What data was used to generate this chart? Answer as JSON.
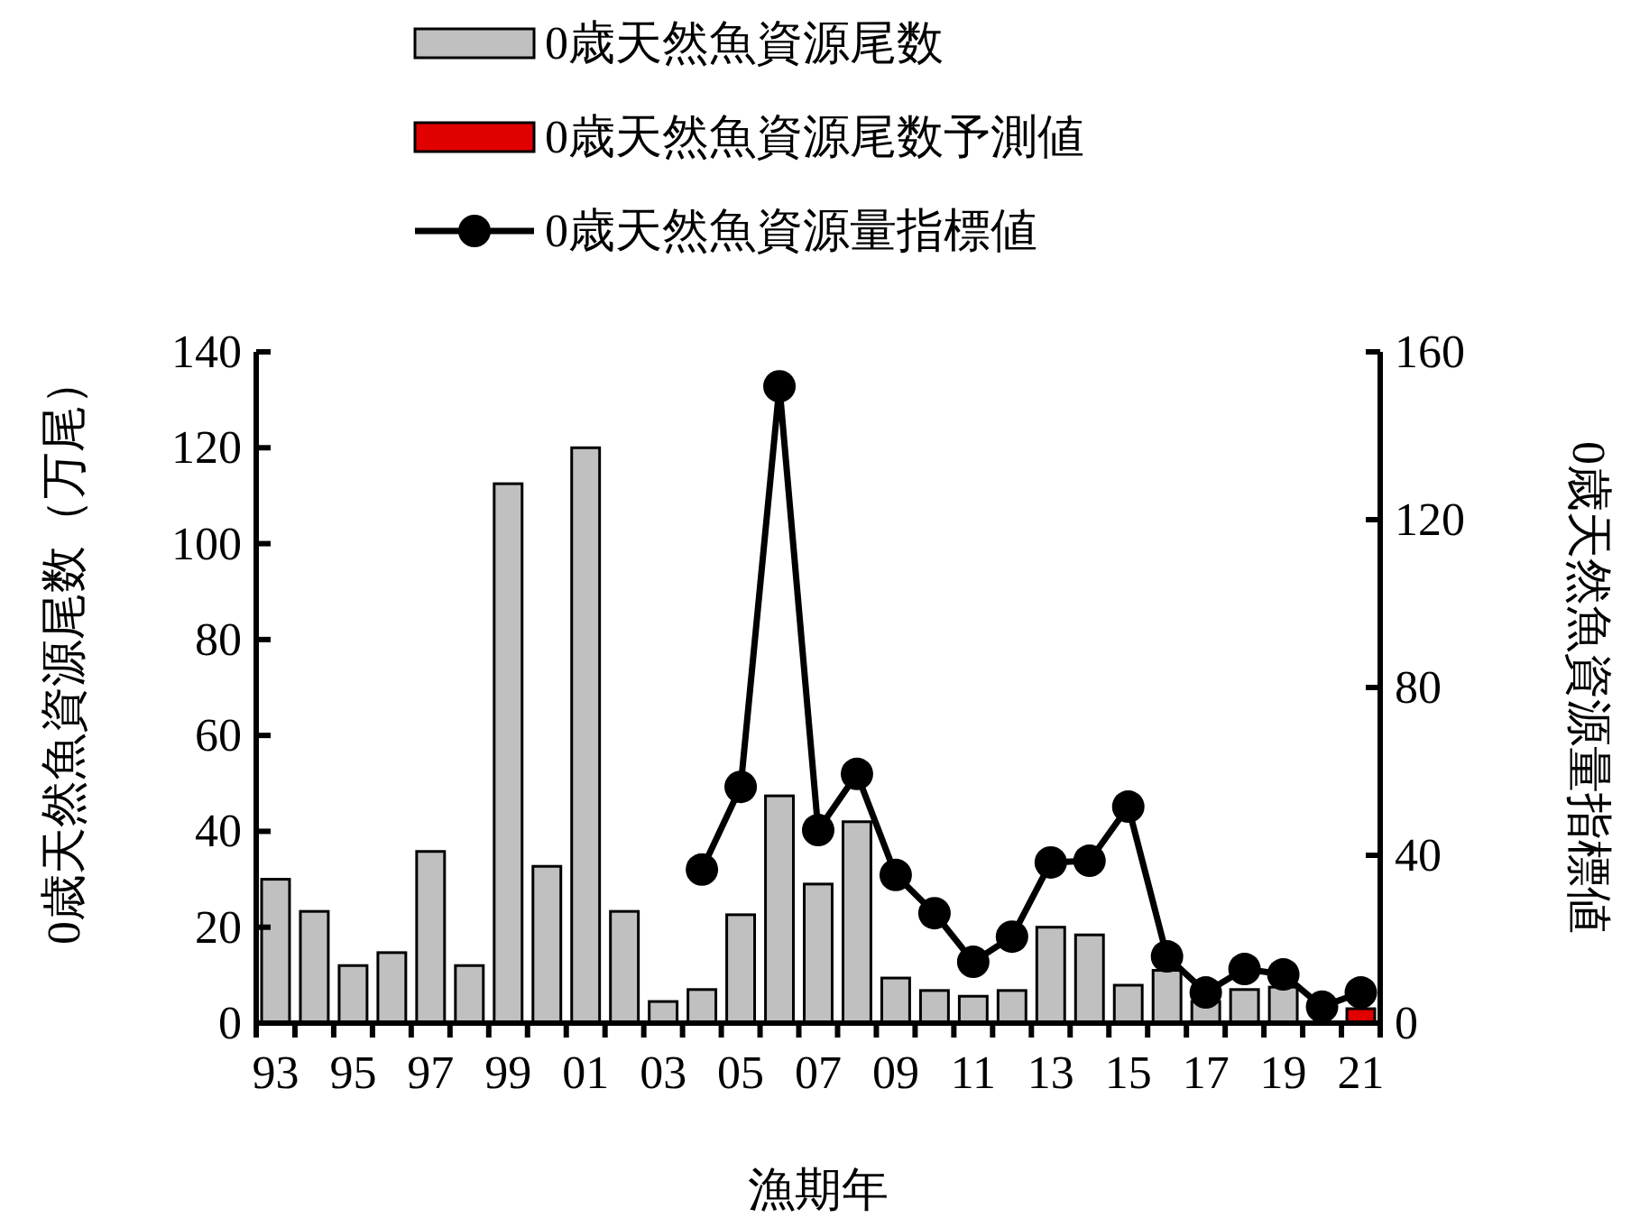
{
  "chart_data": {
    "type": "bar",
    "xlabel": "漁期年",
    "ylabel": "0歳天然魚資源尾数（万尾）",
    "y2label": "0歳天然魚資源量指標値",
    "categories": [
      "93",
      null,
      "95",
      null,
      "97",
      null,
      "99",
      null,
      "01",
      null,
      "03",
      null,
      "05",
      null,
      "07",
      null,
      "09",
      null,
      "11",
      null,
      "13",
      null,
      "15",
      null,
      "17",
      null,
      "19",
      null,
      "21"
    ],
    "ylim": [
      0,
      140
    ],
    "yticks": [
      0,
      20,
      40,
      60,
      80,
      100,
      120,
      140
    ],
    "y2lim": [
      0,
      160
    ],
    "y2ticks": [
      0,
      40,
      80,
      120,
      160
    ],
    "legend": "top",
    "grid": false,
    "marker": "circle",
    "series": [
      {
        "name": "0歳天然魚資源尾数",
        "color": "#c0c0c0",
        "values": [
          30,
          23.3,
          12,
          14.7,
          35.8,
          12,
          112.5,
          32.7,
          120,
          23.3,
          4.5,
          7,
          22.6,
          47.4,
          29,
          42,
          9.4,
          6.8,
          5.6,
          6.8,
          20,
          18.4,
          7.9,
          11,
          4.5,
          7,
          7.5,
          null,
          null
        ]
      },
      {
        "name": "0歳天然魚資源尾数予測値",
        "color": "#e00000",
        "values": [
          null,
          null,
          null,
          null,
          null,
          null,
          null,
          null,
          null,
          null,
          null,
          null,
          null,
          null,
          null,
          null,
          null,
          null,
          null,
          null,
          null,
          null,
          null,
          null,
          null,
          null,
          null,
          null,
          3
        ]
      },
      {
        "name": "0歳天然魚資源量指標値",
        "type": "line",
        "axis": "y2",
        "color": "#000000",
        "values": [
          null,
          null,
          null,
          null,
          null,
          null,
          null,
          null,
          null,
          null,
          null,
          36.6,
          56.3,
          151.8,
          46,
          59.4,
          35.3,
          26.2,
          14.6,
          20.6,
          38.3,
          38.7,
          51.6,
          15.9,
          7.3,
          12.9,
          11.6,
          3.9,
          7.3
        ]
      }
    ]
  }
}
